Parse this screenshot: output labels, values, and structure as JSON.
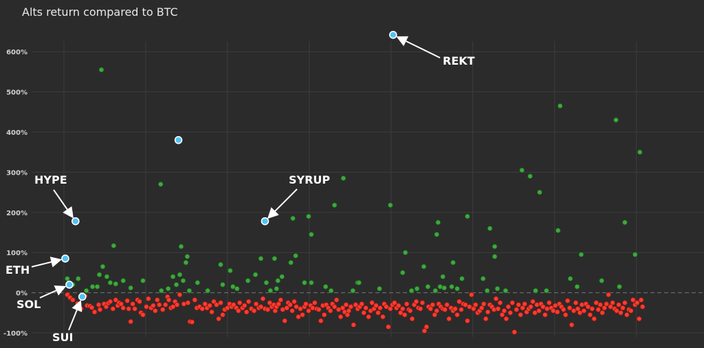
{
  "chart_data": {
    "type": "scatter",
    "title": "Alts return compared to BTC",
    "xlabel": "",
    "ylabel": "",
    "ylim": [
      -100,
      650
    ],
    "y_ticks": [
      "600%",
      "500%",
      "400%",
      "300%",
      "200%",
      "100%",
      "0%",
      "-100%"
    ],
    "y_tick_values": [
      600,
      500,
      400,
      300,
      200,
      100,
      0,
      -100
    ],
    "xlim": [
      -5,
      925
    ],
    "x_gridlines": [
      0,
      120,
      240,
      360,
      480,
      600,
      720,
      840
    ],
    "grid": true,
    "colors": {
      "positive": "#3fa83f",
      "negative": "#ff3b30",
      "highlight": "#4fc3f7",
      "background": "#2b2b2b"
    },
    "highlighted": [
      {
        "label": "REKT",
        "x": 483,
        "y": 642
      },
      {
        "label": "HYPE",
        "x": 17,
        "y": 178
      },
      {
        "label": "SYRUP",
        "x": 295,
        "y": 178
      },
      {
        "label": "ETH",
        "x": 2,
        "y": 85
      },
      {
        "label": "SOL",
        "x": 8,
        "y": 20
      },
      {
        "label": "",
        "x": 168,
        "y": 380
      },
      {
        "label": "SUI",
        "x": 27,
        "y": -10
      }
    ],
    "positive_points": [
      [
        5,
        35
      ],
      [
        13,
        20
      ],
      [
        21,
        35
      ],
      [
        33,
        5
      ],
      [
        42,
        15
      ],
      [
        49,
        15
      ],
      [
        52,
        45
      ],
      [
        55,
        555
      ],
      [
        57,
        65
      ],
      [
        63,
        40
      ],
      [
        68,
        25
      ],
      [
        73,
        117
      ],
      [
        76,
        22
      ],
      [
        87,
        30
      ],
      [
        98,
        12
      ],
      [
        116,
        30
      ],
      [
        142,
        270
      ],
      [
        143,
        5
      ],
      [
        153,
        10
      ],
      [
        160,
        40
      ],
      [
        165,
        20
      ],
      [
        170,
        45
      ],
      [
        172,
        115
      ],
      [
        175,
        30
      ],
      [
        179,
        75
      ],
      [
        181,
        90
      ],
      [
        184,
        5
      ],
      [
        196,
        25
      ],
      [
        211,
        5
      ],
      [
        230,
        70
      ],
      [
        233,
        20
      ],
      [
        244,
        55
      ],
      [
        248,
        15
      ],
      [
        254,
        10
      ],
      [
        270,
        30
      ],
      [
        281,
        45
      ],
      [
        289,
        85
      ],
      [
        297,
        25
      ],
      [
        303,
        5
      ],
      [
        309,
        85
      ],
      [
        312,
        10
      ],
      [
        314,
        30
      ],
      [
        320,
        40
      ],
      [
        333,
        75
      ],
      [
        336,
        185
      ],
      [
        340,
        92
      ],
      [
        353,
        25
      ],
      [
        359,
        190
      ],
      [
        363,
        145
      ],
      [
        363,
        25
      ],
      [
        384,
        15
      ],
      [
        392,
        5
      ],
      [
        397,
        218
      ],
      [
        410,
        285
      ],
      [
        424,
        5
      ],
      [
        431,
        25
      ],
      [
        433,
        25
      ],
      [
        463,
        10
      ],
      [
        479,
        218
      ],
      [
        497,
        50
      ],
      [
        501,
        100
      ],
      [
        510,
        5
      ],
      [
        518,
        10
      ],
      [
        528,
        65
      ],
      [
        534,
        15
      ],
      [
        545,
        5
      ],
      [
        547,
        145
      ],
      [
        549,
        175
      ],
      [
        552,
        15
      ],
      [
        556,
        40
      ],
      [
        558,
        12
      ],
      [
        569,
        15
      ],
      [
        571,
        75
      ],
      [
        577,
        10
      ],
      [
        584,
        35
      ],
      [
        592,
        190
      ],
      [
        615,
        35
      ],
      [
        621,
        5
      ],
      [
        625,
        160
      ],
      [
        632,
        115
      ],
      [
        632,
        90
      ],
      [
        636,
        10
      ],
      [
        648,
        5
      ],
      [
        672,
        305
      ],
      [
        684,
        290
      ],
      [
        692,
        5
      ],
      [
        698,
        250
      ],
      [
        708,
        5
      ],
      [
        725,
        155
      ],
      [
        728,
        465
      ],
      [
        743,
        35
      ],
      [
        753,
        15
      ],
      [
        759,
        95
      ],
      [
        789,
        30
      ],
      [
        810,
        430
      ],
      [
        815,
        15
      ],
      [
        823,
        175
      ],
      [
        838,
        95
      ],
      [
        845,
        350
      ]
    ],
    "negative_points": [
      [
        5,
        -5
      ],
      [
        9,
        -12
      ],
      [
        13,
        -18
      ],
      [
        20,
        -27
      ],
      [
        25,
        -40
      ],
      [
        31,
        -8
      ],
      [
        34,
        -32
      ],
      [
        38,
        -33
      ],
      [
        41,
        -37
      ],
      [
        45,
        -48
      ],
      [
        51,
        -30
      ],
      [
        53,
        -42
      ],
      [
        59,
        -28
      ],
      [
        62,
        -35
      ],
      [
        65,
        -26
      ],
      [
        68,
        -22
      ],
      [
        72,
        -40
      ],
      [
        76,
        -18
      ],
      [
        79,
        -32
      ],
      [
        81,
        -25
      ],
      [
        84,
        -28
      ],
      [
        87,
        -38
      ],
      [
        93,
        -20
      ],
      [
        95,
        -40
      ],
      [
        98,
        -72
      ],
      [
        101,
        -28
      ],
      [
        104,
        -40
      ],
      [
        108,
        -18
      ],
      [
        111,
        -22
      ],
      [
        113,
        -50
      ],
      [
        116,
        -55
      ],
      [
        121,
        -35
      ],
      [
        124,
        -15
      ],
      [
        128,
        -38
      ],
      [
        131,
        -32
      ],
      [
        134,
        -45
      ],
      [
        137,
        -18
      ],
      [
        140,
        -30
      ],
      [
        145,
        -42
      ],
      [
        149,
        -30
      ],
      [
        152,
        -10
      ],
      [
        154,
        -18
      ],
      [
        157,
        -38
      ],
      [
        160,
        -35
      ],
      [
        163,
        -22
      ],
      [
        166,
        -30
      ],
      [
        170,
        -5
      ],
      [
        176,
        -28
      ],
      [
        182,
        -25
      ],
      [
        185,
        -72
      ],
      [
        188,
        -73
      ],
      [
        192,
        -18
      ],
      [
        195,
        -38
      ],
      [
        199,
        -35
      ],
      [
        203,
        -40
      ],
      [
        207,
        -28
      ],
      [
        210,
        -38
      ],
      [
        214,
        -32
      ],
      [
        217,
        -48
      ],
      [
        220,
        -22
      ],
      [
        224,
        -30
      ],
      [
        227,
        -65
      ],
      [
        230,
        -25
      ],
      [
        233,
        -55
      ],
      [
        236,
        -42
      ],
      [
        240,
        -38
      ],
      [
        243,
        -28
      ],
      [
        246,
        -35
      ],
      [
        249,
        -30
      ],
      [
        253,
        -38
      ],
      [
        256,
        -45
      ],
      [
        258,
        -25
      ],
      [
        262,
        -38
      ],
      [
        265,
        -32
      ],
      [
        268,
        -48
      ],
      [
        271,
        -22
      ],
      [
        275,
        -40
      ],
      [
        279,
        -45
      ],
      [
        282,
        -28
      ],
      [
        286,
        -38
      ],
      [
        289,
        -35
      ],
      [
        292,
        -15
      ],
      [
        295,
        -40
      ],
      [
        299,
        -42
      ],
      [
        302,
        -25
      ],
      [
        305,
        -35
      ],
      [
        308,
        -30
      ],
      [
        310,
        -45
      ],
      [
        312,
        -35
      ],
      [
        315,
        -28
      ],
      [
        318,
        -18
      ],
      [
        321,
        -42
      ],
      [
        324,
        -70
      ],
      [
        327,
        -38
      ],
      [
        329,
        -25
      ],
      [
        332,
        -30
      ],
      [
        335,
        -45
      ],
      [
        338,
        -22
      ],
      [
        341,
        -35
      ],
      [
        344,
        -60
      ],
      [
        347,
        -40
      ],
      [
        350,
        -55
      ],
      [
        353,
        -35
      ],
      [
        355,
        -28
      ],
      [
        359,
        -45
      ],
      [
        362,
        -32
      ],
      [
        365,
        -38
      ],
      [
        368,
        -25
      ],
      [
        371,
        -40
      ],
      [
        374,
        -42
      ],
      [
        377,
        -70
      ],
      [
        380,
        -32
      ],
      [
        382,
        -55
      ],
      [
        385,
        -30
      ],
      [
        388,
        -38
      ],
      [
        391,
        -45
      ],
      [
        394,
        -28
      ],
      [
        397,
        -35
      ],
      [
        400,
        -18
      ],
      [
        403,
        -42
      ],
      [
        406,
        -60
      ],
      [
        409,
        -38
      ],
      [
        412,
        -48
      ],
      [
        414,
        -30
      ],
      [
        416,
        -55
      ],
      [
        418,
        -45
      ],
      [
        421,
        -35
      ],
      [
        425,
        -80
      ],
      [
        428,
        -30
      ],
      [
        431,
        -40
      ],
      [
        434,
        -35
      ],
      [
        437,
        -28
      ],
      [
        440,
        -50
      ],
      [
        443,
        -38
      ],
      [
        447,
        -60
      ],
      [
        450,
        -45
      ],
      [
        452,
        -25
      ],
      [
        455,
        -40
      ],
      [
        458,
        -32
      ],
      [
        461,
        -50
      ],
      [
        464,
        -38
      ],
      [
        468,
        -60
      ],
      [
        470,
        -28
      ],
      [
        473,
        -35
      ],
      [
        476,
        -85
      ],
      [
        479,
        -40
      ],
      [
        482,
        -30
      ],
      [
        485,
        -25
      ],
      [
        488,
        -38
      ],
      [
        491,
        -32
      ],
      [
        494,
        -50
      ],
      [
        497,
        -40
      ],
      [
        500,
        -55
      ],
      [
        503,
        -28
      ],
      [
        506,
        -42
      ],
      [
        508,
        -45
      ],
      [
        511,
        -65
      ],
      [
        514,
        -30
      ],
      [
        517,
        -22
      ],
      [
        520,
        -38
      ],
      [
        523,
        -40
      ],
      [
        526,
        -25
      ],
      [
        529,
        -95
      ],
      [
        532,
        -85
      ],
      [
        535,
        -35
      ],
      [
        538,
        -40
      ],
      [
        541,
        -30
      ],
      [
        544,
        -55
      ],
      [
        547,
        -45
      ],
      [
        550,
        -28
      ],
      [
        553,
        -35
      ],
      [
        556,
        -40
      ],
      [
        559,
        -42
      ],
      [
        562,
        -30
      ],
      [
        565,
        -65
      ],
      [
        568,
        -38
      ],
      [
        571,
        -45
      ],
      [
        574,
        -40
      ],
      [
        577,
        -55
      ],
      [
        580,
        -22
      ],
      [
        583,
        -42
      ],
      [
        586,
        -28
      ],
      [
        589,
        -30
      ],
      [
        592,
        -70
      ],
      [
        595,
        -35
      ],
      [
        598,
        -5
      ],
      [
        601,
        -40
      ],
      [
        604,
        -30
      ],
      [
        607,
        -50
      ],
      [
        610,
        -45
      ],
      [
        613,
        -38
      ],
      [
        616,
        -28
      ],
      [
        619,
        -65
      ],
      [
        622,
        -48
      ],
      [
        625,
        -30
      ],
      [
        628,
        -35
      ],
      [
        631,
        -42
      ],
      [
        634,
        -15
      ],
      [
        637,
        -40
      ],
      [
        640,
        -25
      ],
      [
        643,
        -55
      ],
      [
        646,
        -45
      ],
      [
        649,
        -65
      ],
      [
        652,
        -35
      ],
      [
        655,
        -50
      ],
      [
        658,
        -25
      ],
      [
        661,
        -98
      ],
      [
        664,
        -42
      ],
      [
        667,
        -30
      ],
      [
        670,
        -55
      ],
      [
        673,
        -38
      ],
      [
        676,
        -28
      ],
      [
        679,
        -48
      ],
      [
        682,
        -40
      ],
      [
        685,
        -35
      ],
      [
        688,
        -22
      ],
      [
        691,
        -50
      ],
      [
        694,
        -30
      ],
      [
        697,
        -45
      ],
      [
        700,
        -28
      ],
      [
        703,
        -35
      ],
      [
        706,
        -55
      ],
      [
        709,
        -40
      ],
      [
        712,
        -25
      ],
      [
        715,
        -38
      ],
      [
        718,
        -45
      ],
      [
        721,
        -32
      ],
      [
        724,
        -48
      ],
      [
        727,
        -28
      ],
      [
        730,
        -35
      ],
      [
        733,
        -42
      ],
      [
        736,
        -55
      ],
      [
        739,
        -20
      ],
      [
        742,
        -38
      ],
      [
        745,
        -80
      ],
      [
        748,
        -45
      ],
      [
        751,
        -25
      ],
      [
        754,
        -40
      ],
      [
        757,
        -50
      ],
      [
        760,
        -30
      ],
      [
        763,
        -45
      ],
      [
        766,
        -28
      ],
      [
        769,
        -35
      ],
      [
        772,
        -55
      ],
      [
        775,
        -40
      ],
      [
        778,
        -65
      ],
      [
        781,
        -25
      ],
      [
        784,
        -42
      ],
      [
        787,
        -30
      ],
      [
        790,
        -50
      ],
      [
        793,
        -38
      ],
      [
        796,
        -28
      ],
      [
        799,
        -5
      ],
      [
        802,
        -35
      ],
      [
        805,
        -25
      ],
      [
        808,
        -40
      ],
      [
        811,
        -45
      ],
      [
        814,
        -30
      ],
      [
        817,
        -50
      ],
      [
        820,
        -38
      ],
      [
        823,
        -25
      ],
      [
        826,
        -55
      ],
      [
        829,
        -42
      ],
      [
        832,
        -45
      ],
      [
        835,
        -18
      ],
      [
        838,
        -30
      ],
      [
        841,
        -25
      ],
      [
        844,
        -65
      ],
      [
        847,
        -18
      ],
      [
        849,
        -35
      ]
    ]
  }
}
